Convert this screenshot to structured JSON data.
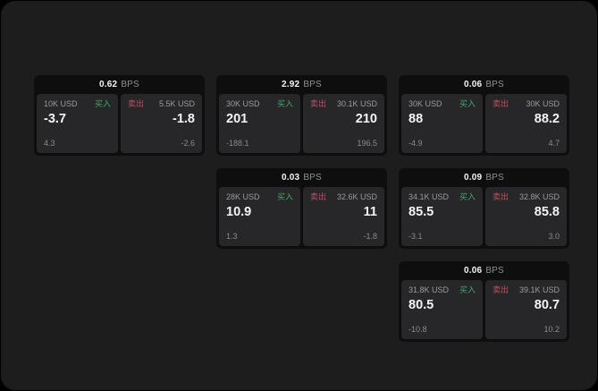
{
  "labels": {
    "buy": "买入",
    "sell": "卖出",
    "bps": "BPS"
  },
  "colors": {
    "window_background": "#1d1d1e",
    "card_background": "#0e0e0f",
    "panel_background": "#272729",
    "buy_green": "#4ba36f",
    "sell_red": "#c05065",
    "primary_text": "#f4f4f4",
    "muted_text": "#9b9b9b"
  },
  "cards": [
    {
      "bps": "0.62",
      "row": 1,
      "col": 1,
      "buy": {
        "volume": "10K USD",
        "value": "-3.7",
        "delta": "4.3"
      },
      "sell": {
        "volume": "5.5K USD",
        "value": "-1.8",
        "delta": "-2.6"
      }
    },
    {
      "bps": "2.92",
      "row": 1,
      "col": 2,
      "buy": {
        "volume": "30K USD",
        "value": "201",
        "delta": "-188.1"
      },
      "sell": {
        "volume": "30.1K USD",
        "value": "210",
        "delta": "196.5"
      }
    },
    {
      "bps": "0.06",
      "row": 1,
      "col": 3,
      "buy": {
        "volume": "30K USD",
        "value": "88",
        "delta": "-4.9"
      },
      "sell": {
        "volume": "30K USD",
        "value": "88.2",
        "delta": "4.7"
      }
    },
    {
      "bps": "0.03",
      "row": 2,
      "col": 2,
      "buy": {
        "volume": "28K USD",
        "value": "10.9",
        "delta": "1.3"
      },
      "sell": {
        "volume": "32.6K USD",
        "value": "11",
        "delta": "-1.8"
      }
    },
    {
      "bps": "0.09",
      "row": 2,
      "col": 3,
      "buy": {
        "volume": "34.1K USD",
        "value": "85.5",
        "delta": "-3.1"
      },
      "sell": {
        "volume": "32.8K USD",
        "value": "85.8",
        "delta": "3.0"
      }
    },
    {
      "bps": "0.06",
      "row": 3,
      "col": 3,
      "buy": {
        "volume": "31.8K USD",
        "value": "80.5",
        "delta": "-10.8"
      },
      "sell": {
        "volume": "39.1K USD",
        "value": "80.7",
        "delta": "10.2"
      }
    }
  ]
}
